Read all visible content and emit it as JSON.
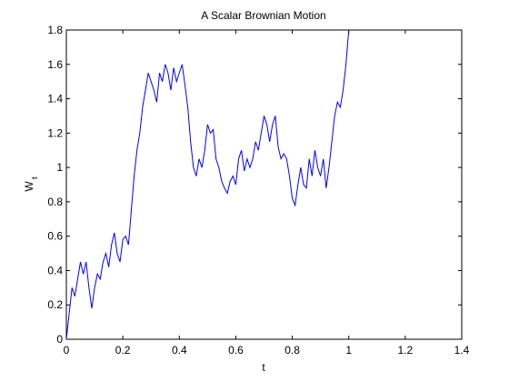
{
  "chart_data": {
    "type": "line",
    "title": "A Scalar Brownian Motion",
    "xlabel": "t",
    "ylabel_main": "W",
    "ylabel_subscript": "t",
    "x": [
      0,
      0.01,
      0.02,
      0.03,
      0.04,
      0.05,
      0.06,
      0.07,
      0.08,
      0.09,
      0.1,
      0.11,
      0.12,
      0.13,
      0.14,
      0.15,
      0.16,
      0.17,
      0.18,
      0.19,
      0.2,
      0.21,
      0.22,
      0.23,
      0.24,
      0.25,
      0.26,
      0.27,
      0.28,
      0.29,
      0.3,
      0.31,
      0.32,
      0.33,
      0.34,
      0.35,
      0.36,
      0.37,
      0.38,
      0.39,
      0.4,
      0.41,
      0.42,
      0.43,
      0.44,
      0.45,
      0.46,
      0.47,
      0.48,
      0.49,
      0.5,
      0.51,
      0.52,
      0.53,
      0.54,
      0.55,
      0.56,
      0.57,
      0.58,
      0.59,
      0.6,
      0.61,
      0.62,
      0.63,
      0.64,
      0.65,
      0.66,
      0.67,
      0.68,
      0.69,
      0.7,
      0.71,
      0.72,
      0.73,
      0.74,
      0.75,
      0.76,
      0.77,
      0.78,
      0.79,
      0.8,
      0.81,
      0.82,
      0.83,
      0.84,
      0.85,
      0.86,
      0.87,
      0.88,
      0.89,
      0.9,
      0.91,
      0.92,
      0.93,
      0.94,
      0.95,
      0.96,
      0.97,
      0.98,
      0.99,
      1.0
    ],
    "series": [
      {
        "color": "#0000ff",
        "values": [
          0,
          0.15,
          0.3,
          0.25,
          0.35,
          0.45,
          0.38,
          0.45,
          0.3,
          0.18,
          0.3,
          0.38,
          0.35,
          0.45,
          0.5,
          0.42,
          0.55,
          0.62,
          0.5,
          0.45,
          0.58,
          0.6,
          0.55,
          0.75,
          0.95,
          1.1,
          1.2,
          1.35,
          1.45,
          1.55,
          1.5,
          1.45,
          1.38,
          1.55,
          1.5,
          1.6,
          1.55,
          1.45,
          1.58,
          1.5,
          1.55,
          1.6,
          1.48,
          1.35,
          1.15,
          1.0,
          0.95,
          1.05,
          1.0,
          1.1,
          1.25,
          1.2,
          1.22,
          1.05,
          1.0,
          0.92,
          0.88,
          0.85,
          0.92,
          0.95,
          0.9,
          1.05,
          1.1,
          0.98,
          1.05,
          1.0,
          1.05,
          1.15,
          1.1,
          1.2,
          1.3,
          1.25,
          1.15,
          1.25,
          1.3,
          1.12,
          1.05,
          1.08,
          1.05,
          0.95,
          0.82,
          0.78,
          0.9,
          1.0,
          0.9,
          0.88,
          1.05,
          0.95,
          1.1,
          1.0,
          0.95,
          1.05,
          0.88,
          1.0,
          1.15,
          1.3,
          1.38,
          1.35,
          1.45,
          1.6,
          1.8
        ]
      }
    ],
    "xlim": [
      0,
      1.4
    ],
    "xticks": [
      0,
      0.2,
      0.4,
      0.6,
      0.8,
      1,
      1.2,
      1.4
    ],
    "ylim": [
      0,
      1.8
    ],
    "yticks": [
      0,
      0.2,
      0.4,
      0.6,
      0.8,
      1,
      1.2,
      1.4,
      1.6,
      1.8
    ]
  }
}
